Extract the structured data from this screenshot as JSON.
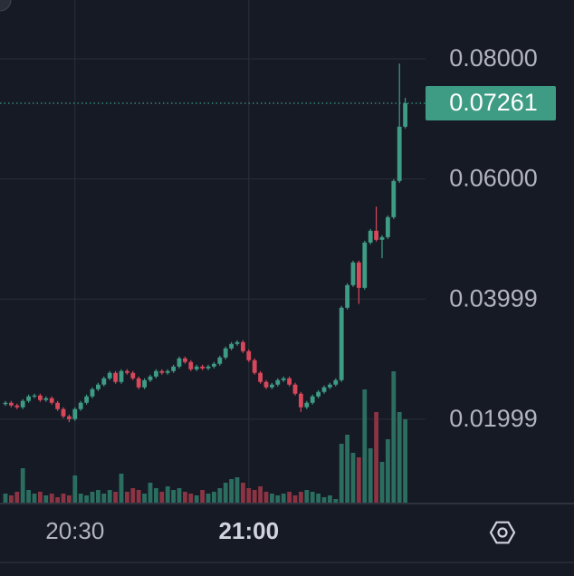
{
  "chart_data": {
    "type": "candlestick",
    "categories": [
      null,
      null,
      null,
      null,
      null,
      null,
      null,
      null,
      null,
      null,
      null,
      null,
      "20:30",
      null,
      null,
      null,
      null,
      null,
      null,
      null,
      null,
      null,
      null,
      null,
      null,
      null,
      null,
      null,
      null,
      null,
      null,
      null,
      null,
      null,
      null,
      null,
      null,
      null,
      null,
      null,
      null,
      null,
      "21:00",
      null,
      null,
      null,
      null,
      null,
      null,
      null,
      null,
      null,
      null,
      null,
      null,
      null,
      null,
      null,
      null,
      null,
      null,
      null,
      null,
      null,
      null,
      null,
      null,
      null,
      null,
      null
    ],
    "open": [
      0.0225,
      0.02273,
      0.02228,
      0.02198,
      0.02304,
      0.02379,
      0.02394,
      0.02319,
      0.02349,
      0.02273,
      0.02168,
      0.02047,
      0.02002,
      0.02168,
      0.02273,
      0.02379,
      0.02499,
      0.02575,
      0.0268,
      0.02771,
      0.0262,
      0.02801,
      0.02771,
      0.0268,
      0.0253,
      0.0265,
      0.0271,
      0.02801,
      0.02771,
      0.02801,
      0.02876,
      0.03012,
      0.02952,
      0.02831,
      0.02876,
      0.02846,
      0.02876,
      0.02921,
      0.03027,
      0.03178,
      0.03253,
      0.03283,
      0.03132,
      0.02982,
      0.02771,
      0.0262,
      0.0253,
      0.02575,
      0.0265,
      0.0268,
      0.02575,
      0.02424,
      0.02198,
      0.02273,
      0.02379,
      0.02454,
      0.0253,
      0.02575,
      0.0265,
      0.03856,
      0.04232,
      0.04609,
      0.04187,
      0.04941,
      0.05137,
      0.04986,
      0.05031,
      0.05363,
      0.05966,
      0.0687
    ],
    "high": [
      0.02303,
      0.02303,
      0.02258,
      0.02334,
      0.02409,
      0.02424,
      0.02424,
      0.02379,
      0.02379,
      0.02303,
      0.02198,
      0.02077,
      0.02198,
      0.02303,
      0.02409,
      0.02529,
      0.02605,
      0.0271,
      0.02801,
      0.02801,
      0.02831,
      0.02831,
      0.02801,
      0.0271,
      0.0268,
      0.0274,
      0.02831,
      0.02831,
      0.02831,
      0.02906,
      0.03042,
      0.03042,
      0.02982,
      0.02906,
      0.02906,
      0.02906,
      0.02951,
      0.03057,
      0.03208,
      0.03283,
      0.03313,
      0.03313,
      0.03162,
      0.03012,
      0.02801,
      0.0265,
      0.02605,
      0.0268,
      0.0271,
      0.0271,
      0.02605,
      0.02454,
      0.02303,
      0.02409,
      0.02484,
      0.0256,
      0.02605,
      0.0268,
      0.03886,
      0.04262,
      0.04639,
      0.04639,
      0.04971,
      0.05167,
      0.0554,
      0.05061,
      0.05393,
      0.05996,
      0.0792,
      0.0735
    ],
    "low": [
      0.0222,
      0.02198,
      0.02168,
      0.02168,
      0.02274,
      0.02349,
      0.02289,
      0.02289,
      0.02243,
      0.02138,
      0.02017,
      0.0195,
      0.01972,
      0.02138,
      0.02243,
      0.02349,
      0.02469,
      0.02545,
      0.0265,
      0.0259,
      0.0259,
      0.02741,
      0.0265,
      0.025,
      0.025,
      0.0262,
      0.0268,
      0.02741,
      0.02741,
      0.02771,
      0.02846,
      0.02922,
      0.02801,
      0.02801,
      0.02816,
      0.02816,
      0.02846,
      0.02891,
      0.02997,
      0.03148,
      0.03223,
      0.03102,
      0.02952,
      0.02741,
      0.0259,
      0.025,
      0.025,
      0.02545,
      0.0262,
      0.02545,
      0.02394,
      0.0212,
      0.02168,
      0.02243,
      0.02349,
      0.02424,
      0.025,
      0.02545,
      0.0262,
      0.03826,
      0.04202,
      0.0392,
      0.04157,
      0.04911,
      0.04956,
      0.0468,
      0.05001,
      0.05333,
      0.05936,
      0.0684
    ],
    "close": [
      0.02273,
      0.02228,
      0.02198,
      0.02304,
      0.02379,
      0.02394,
      0.02319,
      0.02349,
      0.02273,
      0.02168,
      0.02047,
      0.02002,
      0.02168,
      0.02273,
      0.02379,
      0.02499,
      0.02575,
      0.0268,
      0.02771,
      0.0262,
      0.02801,
      0.02771,
      0.0268,
      0.0253,
      0.0265,
      0.0271,
      0.02801,
      0.02771,
      0.02801,
      0.02876,
      0.03012,
      0.02952,
      0.02831,
      0.02876,
      0.02846,
      0.02876,
      0.02921,
      0.03027,
      0.03178,
      0.03253,
      0.03283,
      0.03132,
      0.02982,
      0.02771,
      0.0262,
      0.0253,
      0.02575,
      0.0265,
      0.0268,
      0.02575,
      0.02424,
      0.02198,
      0.02273,
      0.02379,
      0.02454,
      0.0253,
      0.02575,
      0.0265,
      0.03856,
      0.04232,
      0.04609,
      0.04187,
      0.04941,
      0.05137,
      0.04986,
      0.05031,
      0.05363,
      0.05966,
      0.0687,
      0.07261
    ],
    "volume": [
      10,
      8,
      12,
      38,
      14,
      10,
      12,
      8,
      10,
      6,
      10,
      8,
      30,
      10,
      8,
      12,
      14,
      10,
      14,
      12,
      32,
      12,
      16,
      14,
      10,
      22,
      16,
      12,
      18,
      14,
      16,
      12,
      10,
      8,
      14,
      10,
      12,
      16,
      22,
      26,
      28,
      22,
      16,
      14,
      18,
      12,
      10,
      8,
      10,
      12,
      8,
      12,
      14,
      12,
      10,
      6,
      8,
      4,
      65,
      75,
      55,
      50,
      125,
      60,
      100,
      45,
      70,
      145,
      100,
      92
    ],
    "up_color": "#3f9c84",
    "down_color": "#d8485b",
    "ylim": [
      0.0061,
      0.0898
    ],
    "yticks": [
      {
        "value": 0.08,
        "label": "0.08000"
      },
      {
        "value": 0.06,
        "label": "0.06000"
      },
      0.03999,
      0.01999
    ],
    "grid": true
  }
}
